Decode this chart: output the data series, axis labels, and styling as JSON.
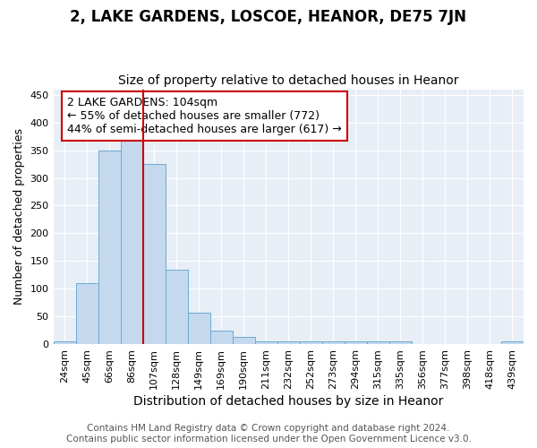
{
  "title": "2, LAKE GARDENS, LOSCOE, HEANOR, DE75 7JN",
  "subtitle": "Size of property relative to detached houses in Heanor",
  "xlabel": "Distribution of detached houses by size in Heanor",
  "ylabel": "Number of detached properties",
  "categories": [
    "24sqm",
    "45sqm",
    "66sqm",
    "86sqm",
    "107sqm",
    "128sqm",
    "149sqm",
    "169sqm",
    "190sqm",
    "211sqm",
    "232sqm",
    "252sqm",
    "273sqm",
    "294sqm",
    "315sqm",
    "335sqm",
    "356sqm",
    "377sqm",
    "398sqm",
    "418sqm",
    "439sqm"
  ],
  "values": [
    5,
    110,
    350,
    375,
    325,
    135,
    57,
    25,
    13,
    5,
    5,
    5,
    5,
    5,
    5,
    5,
    0,
    0,
    0,
    0,
    5
  ],
  "bar_color": "#c5d9ee",
  "bar_edge_color": "#6aabd2",
  "vline_x_index": 4,
  "vline_color": "#cc0000",
  "annotation_text": "2 LAKE GARDENS: 104sqm\n← 55% of detached houses are smaller (772)\n44% of semi-detached houses are larger (617) →",
  "annotation_box_color": "#ffffff",
  "annotation_box_edge_color": "#cc0000",
  "ylim": [
    0,
    460
  ],
  "yticks": [
    0,
    50,
    100,
    150,
    200,
    250,
    300,
    350,
    400,
    450
  ],
  "background_color": "#e8eef6",
  "footer_text": "Contains HM Land Registry data © Crown copyright and database right 2024.\nContains public sector information licensed under the Open Government Licence v3.0.",
  "title_fontsize": 12,
  "subtitle_fontsize": 10,
  "xlabel_fontsize": 10,
  "ylabel_fontsize": 9,
  "tick_fontsize": 8,
  "annotation_fontsize": 9,
  "footer_fontsize": 7.5
}
